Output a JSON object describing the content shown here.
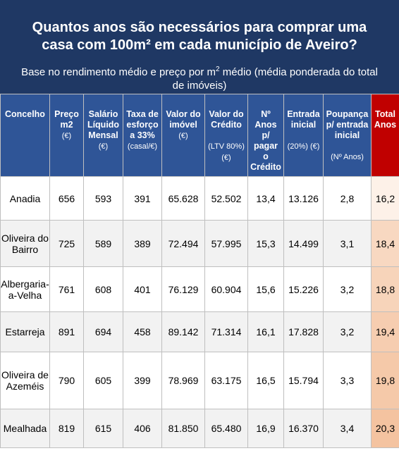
{
  "header": {
    "title_line1": "Quantos anos são necessários para comprar uma",
    "title_line2": "casa com 100m² em cada município de Aveiro?",
    "subtitle_line1_a": "Base no rendimento médio e preço por m",
    "subtitle_line1_sup": "2",
    "subtitle_line1_b": " médio (média ponderada do total",
    "subtitle_line2": "de imóveis)"
  },
  "columns": [
    {
      "label": "Concelho",
      "unit": ""
    },
    {
      "label": "Preço m2",
      "unit": "(€)"
    },
    {
      "label": "Salário Líquido Mensal",
      "unit": "(€)"
    },
    {
      "label": "Taxa de esforço a 33%",
      "unit": "(casal/€)"
    },
    {
      "label": "Valor do imóvel",
      "unit": "(€)"
    },
    {
      "label": "Valor do Crédito",
      "unit": "(LTV 80%) (€)"
    },
    {
      "label": "Nº Anos p/ pagar o Crédito",
      "unit": ""
    },
    {
      "label": "Entrada inicial",
      "unit": "(20%) (€)"
    },
    {
      "label": "Poupança p/ entrada inicial",
      "unit": "(Nº Anos)",
      "sub": "p/"
    },
    {
      "label": "Total Anos",
      "unit": ""
    }
  ],
  "rows": [
    {
      "concelho": "Anadia",
      "preco_m2": "656",
      "salario": "593",
      "taxa": "391",
      "valor_imovel": "65.628",
      "valor_credito": "52.502",
      "anos_credito": "13,4",
      "entrada": "13.126",
      "poupanca": "2,8",
      "total": "16,2"
    },
    {
      "concelho": "Oliveira do Bairro",
      "preco_m2": "725",
      "salario": "589",
      "taxa": "389",
      "valor_imovel": "72.494",
      "valor_credito": "57.995",
      "anos_credito": "15,3",
      "entrada": "14.499",
      "poupanca": "3,1",
      "total": "18,4"
    },
    {
      "concelho": "Albergaria-a-Velha",
      "preco_m2": "761",
      "salario": "608",
      "taxa": "401",
      "valor_imovel": "76.129",
      "valor_credito": "60.904",
      "anos_credito": "15,6",
      "entrada": "15.226",
      "poupanca": "3,2",
      "total": "18,8"
    },
    {
      "concelho": "Estarreja",
      "preco_m2": "891",
      "salario": "694",
      "taxa": "458",
      "valor_imovel": "89.142",
      "valor_credito": "71.314",
      "anos_credito": "16,1",
      "entrada": "17.828",
      "poupanca": "3,2",
      "total": "19,4"
    },
    {
      "concelho": "Oliveira de Azeméis",
      "preco_m2": "790",
      "salario": "605",
      "taxa": "399",
      "valor_imovel": "78.969",
      "valor_credito": "63.175",
      "anos_credito": "16,5",
      "entrada": "15.794",
      "poupanca": "3,3",
      "total": "19,8"
    },
    {
      "concelho": "Mealhada",
      "preco_m2": "819",
      "salario": "615",
      "taxa": "406",
      "valor_imovel": "81.850",
      "valor_credito": "65.480",
      "anos_credito": "16,9",
      "entrada": "16.370",
      "poupanca": "3,4",
      "total": "20,3"
    }
  ],
  "colors": {
    "header_bg": "#1f3864",
    "column_header_bg": "#2f5597",
    "total_header_bg": "#c00000",
    "total_heat_low": "#fdf1e8",
    "total_heat_high": "#f4c3a0"
  },
  "chart_data": {
    "type": "table",
    "title": "Quantos anos são necessários para comprar uma casa com 100m² em cada município de Aveiro?",
    "subtitle": "Base no rendimento médio e preço por m² médio (média ponderada do total de imóveis)",
    "columns": [
      "Concelho",
      "Preço m2 (€)",
      "Salário Líquido Mensal (€)",
      "Taxa de esforço a 33% (casal/€)",
      "Valor do imóvel (€)",
      "Valor do Crédito (LTV 80%) (€)",
      "Nº Anos p/ pagar o Crédito",
      "Entrada inicial (20%) (€)",
      "Poupança p/ entrada inicial (Nº Anos)",
      "Total Anos"
    ],
    "rows": [
      [
        "Anadia",
        656,
        593,
        391,
        65628,
        52502,
        13.4,
        13126,
        2.8,
        16.2
      ],
      [
        "Oliveira do Bairro",
        725,
        589,
        389,
        72494,
        57995,
        15.3,
        14499,
        3.1,
        18.4
      ],
      [
        "Albergaria-a-Velha",
        761,
        608,
        401,
        76129,
        60904,
        15.6,
        15226,
        3.2,
        18.8
      ],
      [
        "Estarreja",
        891,
        694,
        458,
        89142,
        71314,
        16.1,
        17828,
        3.2,
        19.4
      ],
      [
        "Oliveira de Azeméis",
        790,
        605,
        399,
        78969,
        63175,
        16.5,
        15794,
        3.3,
        19.8
      ],
      [
        "Mealhada",
        819,
        615,
        406,
        81850,
        65480,
        16.9,
        16370,
        3.4,
        20.3
      ]
    ],
    "total_min": 16.2,
    "total_max": 20.3
  }
}
